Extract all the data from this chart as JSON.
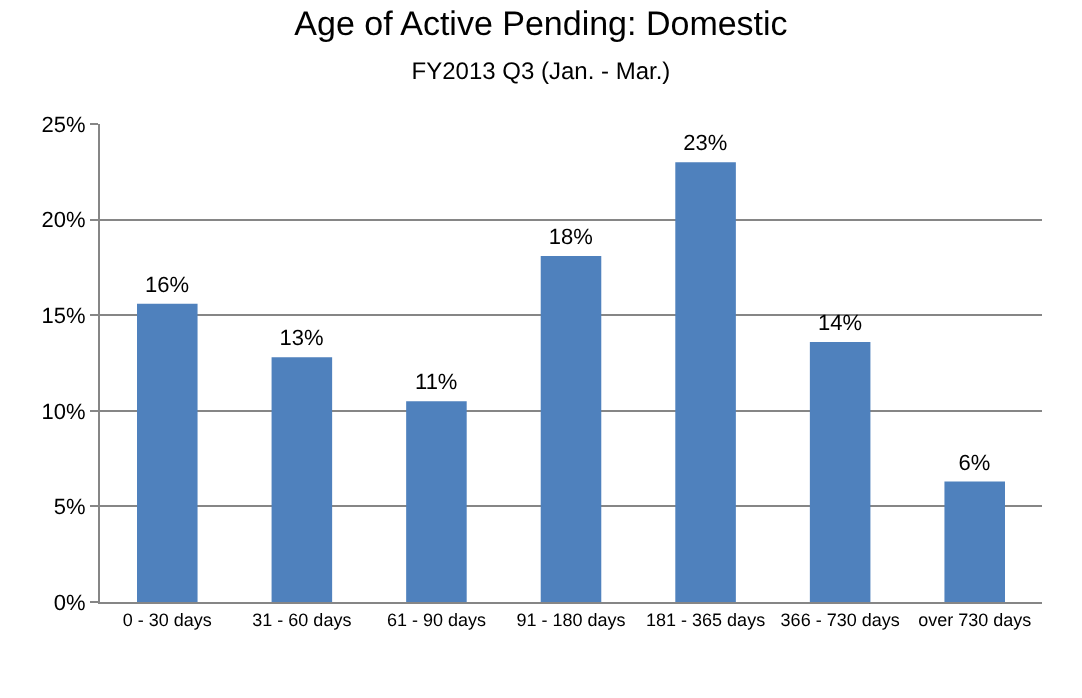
{
  "chart_data": {
    "type": "bar",
    "title": "Age of Active Pending: Domestic",
    "subtitle": "FY2013 Q3 (Jan. - Mar.)",
    "categories": [
      "0 - 30 days",
      "31 - 60 days",
      "61 - 90 days",
      "91 - 180 days",
      "181 - 365 days",
      "366 - 730 days",
      "over 730 days"
    ],
    "values": [
      15.6,
      12.8,
      10.5,
      18.1,
      23,
      13.6,
      6.3
    ],
    "value_labels": [
      "16%",
      "13%",
      "11%",
      "18%",
      "23%",
      "14%",
      "6%"
    ],
    "color": "#4f81bd",
    "ylim": [
      0,
      25
    ],
    "yticks": [
      {
        "value": 0,
        "label": "0%"
      },
      {
        "value": 5,
        "label": "5%"
      },
      {
        "value": 10,
        "label": "10%"
      },
      {
        "value": 15,
        "label": "15%"
      },
      {
        "value": 20,
        "label": "20%"
      },
      {
        "value": 25,
        "label": "25%"
      }
    ],
    "grid": "y"
  }
}
